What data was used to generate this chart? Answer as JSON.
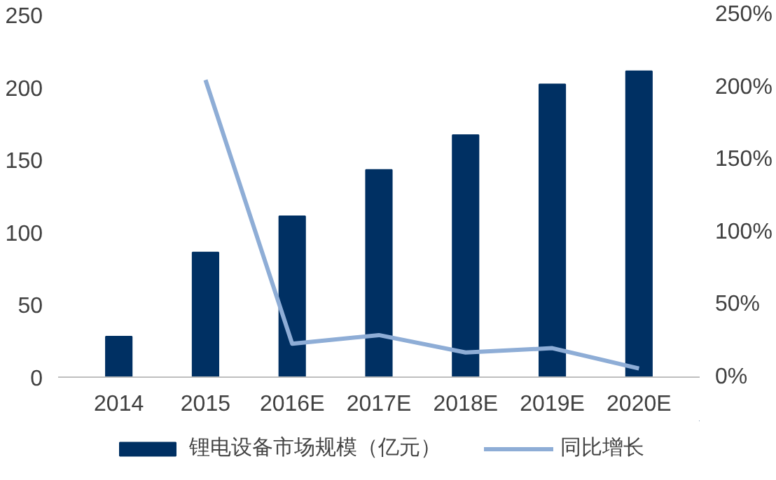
{
  "chart_data": {
    "type": "bar",
    "categories": [
      "2014",
      "2015",
      "2016E",
      "2017E",
      "2018E",
      "2019E",
      "2020E"
    ],
    "series": [
      {
        "name": "锂电设备市场规模（亿元）",
        "color": "#003063",
        "values": [
          28,
          86,
          111,
          143,
          167,
          202,
          211
        ]
      },
      {
        "name": "同比增长",
        "color": "#8eadd6",
        "type": "line",
        "axis": "y2",
        "values": [
          null,
          205,
          23,
          29,
          17,
          20,
          6
        ]
      }
    ],
    "ylim": [
      0,
      250
    ],
    "yticks": [
      0,
      50,
      100,
      150,
      200,
      250
    ],
    "y2lim": [
      0,
      250
    ],
    "y2ticks": [
      {
        "value": 0,
        "label": "0%"
      },
      {
        "value": 50,
        "label": "50%"
      },
      {
        "value": 100,
        "label": "100%"
      },
      {
        "value": 150,
        "label": "150%"
      },
      {
        "value": 200,
        "label": "200%"
      },
      {
        "value": 250,
        "label": "250%"
      }
    ],
    "grid": false,
    "legend": "bottom"
  }
}
